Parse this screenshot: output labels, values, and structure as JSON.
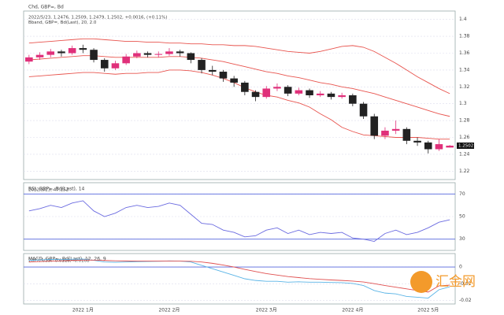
{
  "chart_data": [
    {
      "type": "candlestick",
      "title": "Chd, GBP=, Bd",
      "info_lines": [
        "2022/5/23, 1.2476, 1.2509, 1.2479, 1.2502, +0.0016, (+0.11%)",
        "Bband, GBP=, Bd(Last), 20, 2.0"
      ],
      "categories": [
        null,
        null,
        null,
        null,
        null,
        "2022 1月",
        null,
        null,
        null,
        null,
        null,
        null,
        null,
        "2022 2月",
        null,
        null,
        null,
        null,
        null,
        null,
        null,
        null,
        "2022 3月",
        null,
        null,
        null,
        null,
        null,
        null,
        null,
        "2022 4月",
        null,
        null,
        null,
        null,
        null,
        null,
        "2022 5月",
        null,
        null
      ],
      "ohlc": [
        [
          1.35,
          1.358,
          1.347,
          1.355
        ],
        [
          1.355,
          1.361,
          1.352,
          1.358
        ],
        [
          1.358,
          1.365,
          1.355,
          1.362
        ],
        [
          1.362,
          1.364,
          1.356,
          1.36
        ],
        [
          1.36,
          1.369,
          1.358,
          1.366
        ],
        [
          1.366,
          1.37,
          1.36,
          1.364
        ],
        [
          1.364,
          1.366,
          1.349,
          1.352
        ],
        [
          1.352,
          1.354,
          1.338,
          1.342
        ],
        [
          1.342,
          1.351,
          1.34,
          1.348
        ],
        [
          1.348,
          1.359,
          1.346,
          1.356
        ],
        [
          1.356,
          1.363,
          1.354,
          1.36
        ],
        [
          1.36,
          1.362,
          1.355,
          1.358
        ],
        [
          1.358,
          1.362,
          1.355,
          1.359
        ],
        [
          1.359,
          1.366,
          1.357,
          1.362
        ],
        [
          1.362,
          1.364,
          1.356,
          1.36
        ],
        [
          1.36,
          1.361,
          1.348,
          1.352
        ],
        [
          1.352,
          1.354,
          1.336,
          1.34
        ],
        [
          1.34,
          1.345,
          1.334,
          1.338
        ],
        [
          1.338,
          1.34,
          1.326,
          1.33
        ],
        [
          1.33,
          1.333,
          1.32,
          1.325
        ],
        [
          1.325,
          1.327,
          1.31,
          1.314
        ],
        [
          1.314,
          1.316,
          1.303,
          1.308
        ],
        [
          1.308,
          1.321,
          1.306,
          1.318
        ],
        [
          1.318,
          1.324,
          1.315,
          1.32
        ],
        [
          1.32,
          1.322,
          1.309,
          1.312
        ],
        [
          1.312,
          1.319,
          1.31,
          1.316
        ],
        [
          1.316,
          1.318,
          1.307,
          1.31
        ],
        [
          1.31,
          1.315,
          1.308,
          1.312
        ],
        [
          1.312,
          1.314,
          1.305,
          1.308
        ],
        [
          1.308,
          1.313,
          1.306,
          1.31
        ],
        [
          1.31,
          1.312,
          1.297,
          1.3
        ],
        [
          1.3,
          1.302,
          1.282,
          1.285
        ],
        [
          1.285,
          1.288,
          1.258,
          1.262
        ],
        [
          1.262,
          1.272,
          1.258,
          1.268
        ],
        [
          1.268,
          1.28,
          1.264,
          1.27
        ],
        [
          1.27,
          1.272,
          1.252,
          1.256
        ],
        [
          1.256,
          1.26,
          1.25,
          1.254
        ],
        [
          1.254,
          1.256,
          1.241,
          1.246
        ],
        [
          1.246,
          1.258,
          1.244,
          1.252
        ],
        [
          1.248,
          1.251,
          1.248,
          1.2502
        ]
      ],
      "bollinger": [
        {
          "name": "upper",
          "color": "#e8544e",
          "values": [
            1.372,
            1.373,
            1.374,
            1.375,
            1.376,
            1.377,
            1.377,
            1.376,
            1.375,
            1.374,
            1.374,
            1.373,
            1.373,
            1.372,
            1.372,
            1.371,
            1.371,
            1.37,
            1.37,
            1.369,
            1.369,
            1.368,
            1.366,
            1.364,
            1.362,
            1.361,
            1.36,
            1.362,
            1.365,
            1.368,
            1.369,
            1.367,
            1.362,
            1.355,
            1.348,
            1.34,
            1.332,
            1.325,
            1.318,
            1.312
          ]
        },
        {
          "name": "middle",
          "color": "#e8544e",
          "values": [
            1.352,
            1.353,
            1.354,
            1.355,
            1.356,
            1.357,
            1.357,
            1.356,
            1.355,
            1.355,
            1.355,
            1.355,
            1.355,
            1.356,
            1.356,
            1.355,
            1.354,
            1.352,
            1.35,
            1.347,
            1.344,
            1.341,
            1.338,
            1.336,
            1.333,
            1.331,
            1.328,
            1.325,
            1.323,
            1.32,
            1.318,
            1.315,
            1.312,
            1.308,
            1.304,
            1.3,
            1.296,
            1.292,
            1.288,
            1.285
          ]
        },
        {
          "name": "lower",
          "color": "#e8544e",
          "values": [
            1.332,
            1.333,
            1.334,
            1.335,
            1.336,
            1.337,
            1.337,
            1.336,
            1.335,
            1.336,
            1.336,
            1.337,
            1.337,
            1.34,
            1.34,
            1.339,
            1.337,
            1.334,
            1.33,
            1.325,
            1.319,
            1.314,
            1.31,
            1.308,
            1.304,
            1.301,
            1.296,
            1.288,
            1.281,
            1.272,
            1.267,
            1.263,
            1.262,
            1.261,
            1.26,
            1.26,
            1.26,
            1.259,
            1.258,
            1.258
          ]
        }
      ],
      "up_color": "#e0307a",
      "down_color": "#222222",
      "ylim": [
        1.21,
        1.41
      ],
      "yticks": [
        1.22,
        1.24,
        1.26,
        1.28,
        1.3,
        1.32,
        1.34,
        1.36,
        1.38,
        1.4
      ],
      "last_price": 1.2502
    },
    {
      "type": "line",
      "title": "RSI, GBP=, Bd(Last), 14",
      "info_lines": [
        "2022/5/23, 47.152"
      ],
      "series": [
        {
          "name": "RSI",
          "color": "#6a6ae0",
          "values": [
            55,
            57,
            60,
            58,
            62,
            64,
            55,
            50,
            53,
            58,
            60,
            58,
            59,
            62,
            60,
            52,
            44,
            43,
            38,
            36,
            32,
            33,
            38,
            40,
            35,
            38,
            34,
            36,
            35,
            36,
            31,
            30,
            28,
            35,
            38,
            34,
            36,
            40,
            45,
            47.152
          ]
        }
      ],
      "levels": [
        70,
        30
      ],
      "ylim": [
        20,
        80
      ],
      "yticks": [
        30,
        50,
        70
      ]
    },
    {
      "type": "line",
      "title": "MACD, GBP=, Bd(Last), 12, 26, 9",
      "info_lines": [
        "2022/5/23, -0.0118, -0.0108"
      ],
      "series": [
        {
          "name": "MACD",
          "color": "#5ab4e6",
          "values": [
            0.004,
            0.0042,
            0.0045,
            0.0044,
            0.0046,
            0.0047,
            0.004,
            0.003,
            0.0028,
            0.003,
            0.0032,
            0.0033,
            0.0034,
            0.0036,
            0.0035,
            0.003,
            0.001,
            -0.001,
            -0.003,
            -0.005,
            -0.007,
            -0.008,
            -0.0085,
            -0.0085,
            -0.009,
            -0.0088,
            -0.009,
            -0.009,
            -0.0092,
            -0.0093,
            -0.0098,
            -0.011,
            -0.014,
            -0.0155,
            -0.016,
            -0.0175,
            -0.018,
            -0.0185,
            -0.0135,
            -0.0118
          ]
        },
        {
          "name": "Signal",
          "color": "#e05050",
          "values": [
            0.003,
            0.0033,
            0.0035,
            0.0037,
            0.0039,
            0.0041,
            0.0041,
            0.0039,
            0.0037,
            0.0036,
            0.0035,
            0.0035,
            0.0035,
            0.0035,
            0.0035,
            0.0034,
            0.003,
            0.0022,
            0.0012,
            0.0,
            -0.0014,
            -0.0027,
            -0.0039,
            -0.0048,
            -0.0057,
            -0.0063,
            -0.0069,
            -0.0073,
            -0.0077,
            -0.008,
            -0.0084,
            -0.0089,
            -0.0099,
            -0.011,
            -0.012,
            -0.013,
            -0.014,
            -0.0149,
            -0.0112,
            -0.0108
          ]
        }
      ],
      "levels": [
        0
      ],
      "ylim": [
        -0.022,
        0.008
      ],
      "yticks": [
        -0.02,
        -0.01,
        0
      ]
    }
  ],
  "watermark": "汇金网"
}
